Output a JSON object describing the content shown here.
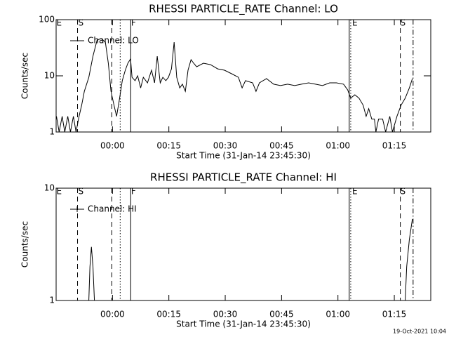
{
  "chart_data": [
    {
      "type": "line",
      "title": "RHESSI PARTICLE_RATE Channel: LO",
      "xlabel": "Start Time (31-Jan-14 23:45:30)",
      "ylabel": "Counts/sec",
      "xlim": [
        -15,
        84.7
      ],
      "ylim": [
        1,
        100
      ],
      "log_y": true,
      "xticks": [
        {
          "value": 0,
          "label": "00:00"
        },
        {
          "value": 15,
          "label": "00:15"
        },
        {
          "value": 30,
          "label": "00:30"
        },
        {
          "value": 45,
          "label": "00:45"
        },
        {
          "value": 60,
          "label": "01:00"
        },
        {
          "value": 75,
          "label": "01:15"
        }
      ],
      "yticks": [
        1,
        10,
        100
      ],
      "vlines": [
        {
          "x": -9.3,
          "style": "dashed"
        },
        {
          "x": -0.2,
          "style": "dashed"
        },
        {
          "x": 2.05,
          "style": "dotted"
        },
        {
          "x": 4.85,
          "style": "solid"
        },
        {
          "x": 63,
          "style": "solid"
        },
        {
          "x": 63.4,
          "style": "dotted"
        },
        {
          "x": 76.6,
          "style": "dashed"
        },
        {
          "x": 80,
          "style": "dashdot"
        }
      ],
      "annotations": [
        {
          "text": "E",
          "x": -14.2
        },
        {
          "text": "S",
          "x": -8.4
        },
        {
          "text": "F",
          "x": 5.6
        },
        {
          "text": "E",
          "x": 64.5
        },
        {
          "text": "S",
          "x": 77.3
        }
      ],
      "legend": "upper left",
      "series": [
        {
          "name": "Channel: LO",
          "color": "#000000",
          "marker": "none",
          "x": [
            -14.9,
            -14.2,
            -13.4,
            -12.7,
            -11.9,
            -11.2,
            -10.4,
            -9.7,
            -8.9,
            -8.2,
            -7.5,
            -6.3,
            -5.2,
            -4.1,
            -3.0,
            -1.9,
            -1.1,
            -0.4,
            0.4,
            1.1,
            1.9,
            2.6,
            3.4,
            4.1,
            4.8,
            5.2,
            6.0,
            6.7,
            7.5,
            8.2,
            9.3,
            10.4,
            11.2,
            11.9,
            12.7,
            13.4,
            14.2,
            14.9,
            15.7,
            16.4,
            17.1,
            17.9,
            18.6,
            19.4,
            20.1,
            20.9,
            21.6,
            22.4,
            24.2,
            26.1,
            28.0,
            29.8,
            31.7,
            33.5,
            34.5,
            35.4,
            37.3,
            38.2,
            39.1,
            41.0,
            42.9,
            44.7,
            46.6,
            48.5,
            50.3,
            52.2,
            54.0,
            55.9,
            57.8,
            59.6,
            61.5,
            62.6,
            63.4,
            64.5,
            65.6,
            66.7,
            67.5,
            68.2,
            69.0,
            69.7,
            70.1,
            70.8,
            71.9,
            72.7,
            73.8,
            74.5,
            75.7,
            76.8,
            77.9,
            79.0,
            79.8
          ],
          "values": [
            1.9,
            1,
            1.9,
            1,
            1.9,
            1,
            1.9,
            1,
            1.9,
            3.0,
            5.3,
            9.4,
            22.4,
            43.4,
            46,
            39.8,
            16.8,
            5.3,
            3.0,
            1.9,
            4.0,
            8.2,
            12.6,
            16.8,
            20,
            9.4,
            8.2,
            10,
            6.1,
            9.4,
            7.5,
            12.6,
            7.5,
            22.4,
            7.5,
            9.4,
            8.2,
            9.4,
            13.3,
            39.8,
            9.4,
            6.1,
            7.1,
            5.3,
            12.6,
            19.4,
            16.8,
            14.5,
            16.8,
            15.8,
            13.3,
            12.6,
            10.9,
            9.4,
            6.1,
            8.2,
            7.5,
            5.3,
            7.5,
            8.9,
            7.1,
            6.7,
            7.1,
            6.7,
            7.1,
            7.5,
            7.1,
            6.7,
            7.5,
            7.5,
            7.1,
            5.6,
            4.0,
            4.6,
            4.0,
            3.0,
            1.9,
            2.6,
            1.7,
            1.7,
            1,
            1.7,
            1.7,
            1,
            1.9,
            1,
            1.9,
            3.0,
            4.0,
            6.1,
            8.9
          ]
        }
      ]
    },
    {
      "type": "line",
      "title": "RHESSI PARTICLE_RATE Channel: HI",
      "xlabel": "Start Time (31-Jan-14 23:45:30)",
      "ylabel": "Counts/sec",
      "xlim": [
        -15,
        84.7
      ],
      "ylim": [
        1,
        10
      ],
      "log_y": true,
      "xticks": [
        {
          "value": 0,
          "label": "00:00"
        },
        {
          "value": 15,
          "label": "00:15"
        },
        {
          "value": 30,
          "label": "00:30"
        },
        {
          "value": 45,
          "label": "00:45"
        },
        {
          "value": 60,
          "label": "01:00"
        },
        {
          "value": 75,
          "label": "01:15"
        }
      ],
      "yticks": [
        1,
        10
      ],
      "vlines": [
        {
          "x": -9.3,
          "style": "dashed"
        },
        {
          "x": -0.2,
          "style": "dashed"
        },
        {
          "x": 2.05,
          "style": "dotted"
        },
        {
          "x": 4.85,
          "style": "solid"
        },
        {
          "x": 63,
          "style": "solid"
        },
        {
          "x": 63.4,
          "style": "dotted"
        },
        {
          "x": 76.6,
          "style": "dashed"
        },
        {
          "x": 80,
          "style": "dashdot"
        }
      ],
      "annotations": [
        {
          "text": "E",
          "x": -14.2
        },
        {
          "text": "S",
          "x": -8.4
        },
        {
          "text": "F",
          "x": 5.6
        },
        {
          "text": "E",
          "x": 64.5
        },
        {
          "text": "S",
          "x": 77.3
        }
      ],
      "legend": "upper left",
      "series": [
        {
          "name": "Channel: HI",
          "color": "#000000",
          "marker": "plus",
          "x": [
            -6.3,
            -6.0,
            -5.6,
            -5.2,
            -4.8,
            null,
            77.9,
            78.3,
            79.0,
            79.8
          ],
          "values": [
            1,
            2.0,
            3.0,
            2.0,
            1,
            null,
            1,
            2.0,
            3.5,
            5.3
          ]
        }
      ]
    }
  ],
  "footer": "19-Oct-2021 10:04"
}
